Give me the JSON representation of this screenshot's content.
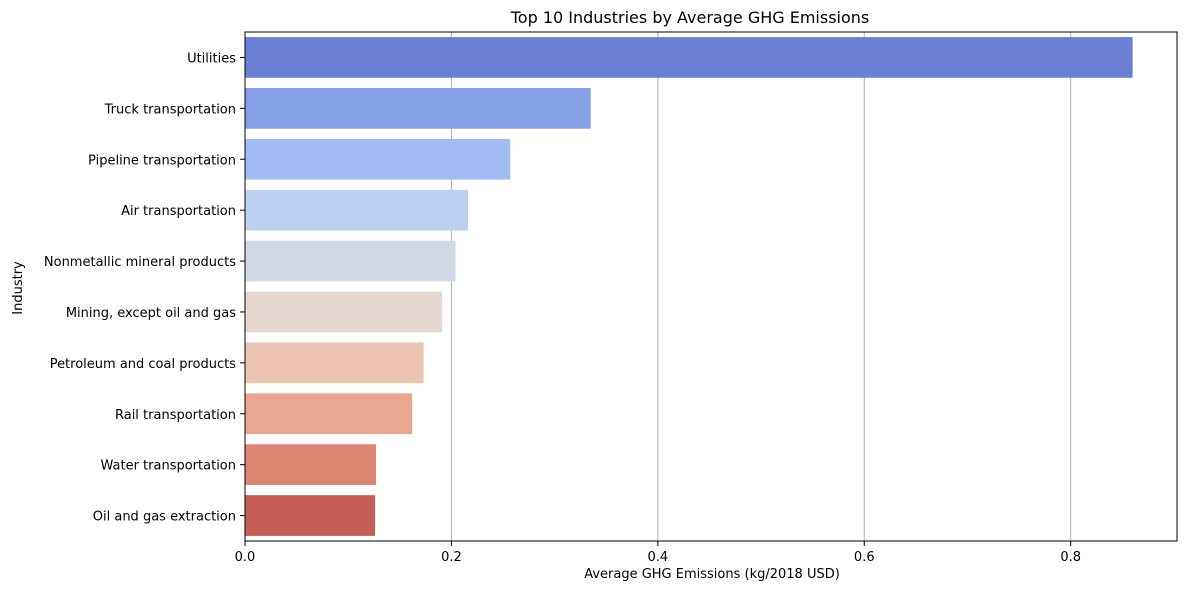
{
  "chart_data": {
    "type": "bar",
    "orientation": "horizontal",
    "title": "Top 10 Industries by Average GHG Emissions",
    "xlabel": "Average GHG Emissions (kg/2018 USD)",
    "ylabel": "Industry",
    "xlim": [
      0,
      0.903
    ],
    "x_ticks": [
      0.0,
      0.2,
      0.4,
      0.6,
      0.8
    ],
    "x_tick_labels": [
      "0.0",
      "0.2",
      "0.4",
      "0.6",
      "0.8"
    ],
    "grid": "vertical",
    "legend": "none",
    "categories": [
      "Utilities",
      "Truck transportation",
      "Pipeline transportation",
      "Air transportation",
      "Nonmetallic mineral products",
      "Mining, except oil and gas",
      "Petroleum and coal products",
      "Rail transportation",
      "Water transportation",
      "Oil and gas extraction"
    ],
    "values": [
      0.86,
      0.335,
      0.257,
      0.216,
      0.204,
      0.191,
      0.173,
      0.162,
      0.127,
      0.126
    ],
    "colors": [
      "#6b7fd4",
      "#85a0e6",
      "#a2bbf3",
      "#bed0f1",
      "#d3d9e4",
      "#e4d8d0",
      "#ecc4b1",
      "#e8a78e",
      "#db8672",
      "#c55e55"
    ]
  }
}
